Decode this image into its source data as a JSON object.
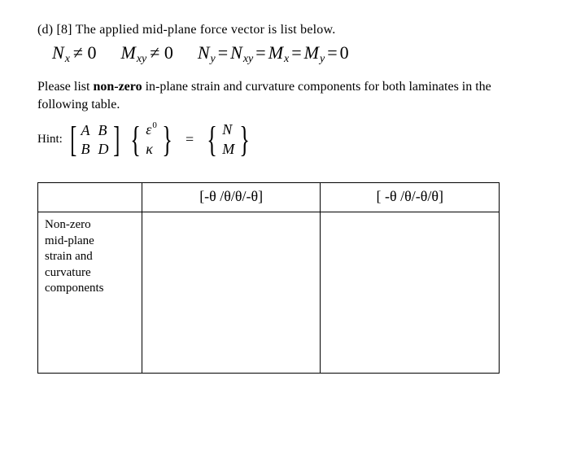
{
  "problem": {
    "heading": "(d) [8] The applied mid-plane force vector is list below.",
    "instruction1": "Please list ",
    "instruction_bold": "non-zero",
    "instruction2": " in-plane strain and curvature components for both laminates in the following table.",
    "hint_label": "Hint: "
  },
  "forces": {
    "Nx": "N",
    "Nx_sub": "x",
    "neq1": " ≠ 0",
    "Mxy": "M",
    "Mxy_sub": "xy",
    "neq2": " ≠ 0",
    "Ny": "N",
    "Ny_sub": "y",
    "Nxy": "N",
    "Nxy_sub": "xy",
    "Mx": "M",
    "Mx_sub": "x",
    "My": "M",
    "My_sub": "y",
    "eq": " = ",
    "zero": "0"
  },
  "matrix": {
    "A": "A",
    "B": "B",
    "B2": "B",
    "D": "D",
    "eps": "ε",
    "eps_sup": "0",
    "kappa": "κ",
    "N": "N",
    "M": "M",
    "equals": "="
  },
  "table": {
    "col1": "[-θ /θ/θ/-θ]",
    "col2": "[ -θ /θ/-θ/θ]",
    "row_label_l1": "Non-zero",
    "row_label_l2": "mid-plane",
    "row_label_l3": "strain and",
    "row_label_l4": "curvature",
    "row_label_l5": "components"
  },
  "colors": {
    "text": "#000000",
    "bg": "#ffffff",
    "border": "#000000"
  }
}
